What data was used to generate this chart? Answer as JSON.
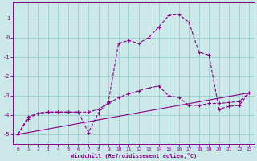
{
  "xlabel": "Windchill (Refroidissement éolien,°C)",
  "background_color": "#cce8e8",
  "line_color": "#880088",
  "grid_color": "#99cccc",
  "xlim": [
    -0.5,
    23.5
  ],
  "ylim": [
    -5.5,
    1.8
  ],
  "xticks": [
    0,
    1,
    2,
    3,
    4,
    5,
    6,
    7,
    8,
    9,
    10,
    11,
    12,
    13,
    14,
    15,
    16,
    17,
    18,
    19,
    20,
    21,
    22,
    23
  ],
  "yticks": [
    -5,
    -4,
    -3,
    -2,
    -1,
    0,
    1
  ],
  "series1_x": [
    0,
    1,
    2,
    3,
    4,
    5,
    6,
    7,
    8,
    9,
    10,
    11,
    12,
    13,
    14,
    15,
    16,
    17,
    18,
    19,
    20,
    21,
    22,
    23
  ],
  "series1_y": [
    -5.0,
    -4.2,
    -3.9,
    -3.85,
    -3.85,
    -3.85,
    -3.85,
    -4.9,
    -3.9,
    -3.3,
    -0.3,
    -0.15,
    -0.3,
    0.0,
    0.55,
    1.15,
    1.2,
    0.8,
    -0.75,
    -0.9,
    -3.7,
    -3.55,
    -3.5,
    -2.85
  ],
  "series2_x": [
    0,
    1,
    2,
    3,
    4,
    5,
    6,
    7,
    8,
    9,
    10,
    11,
    12,
    13,
    14,
    15,
    16,
    17,
    18,
    19,
    20,
    21,
    22,
    23
  ],
  "series2_y": [
    -5.0,
    -4.1,
    -3.9,
    -3.85,
    -3.85,
    -3.85,
    -3.85,
    -3.85,
    -3.7,
    -3.4,
    -3.1,
    -2.9,
    -2.75,
    -2.6,
    -2.5,
    -3.0,
    -3.1,
    -3.5,
    -3.5,
    -3.4,
    -3.4,
    -3.35,
    -3.3,
    -2.85
  ],
  "series3_x": [
    0,
    23
  ],
  "series3_y": [
    -5.0,
    -2.85
  ]
}
